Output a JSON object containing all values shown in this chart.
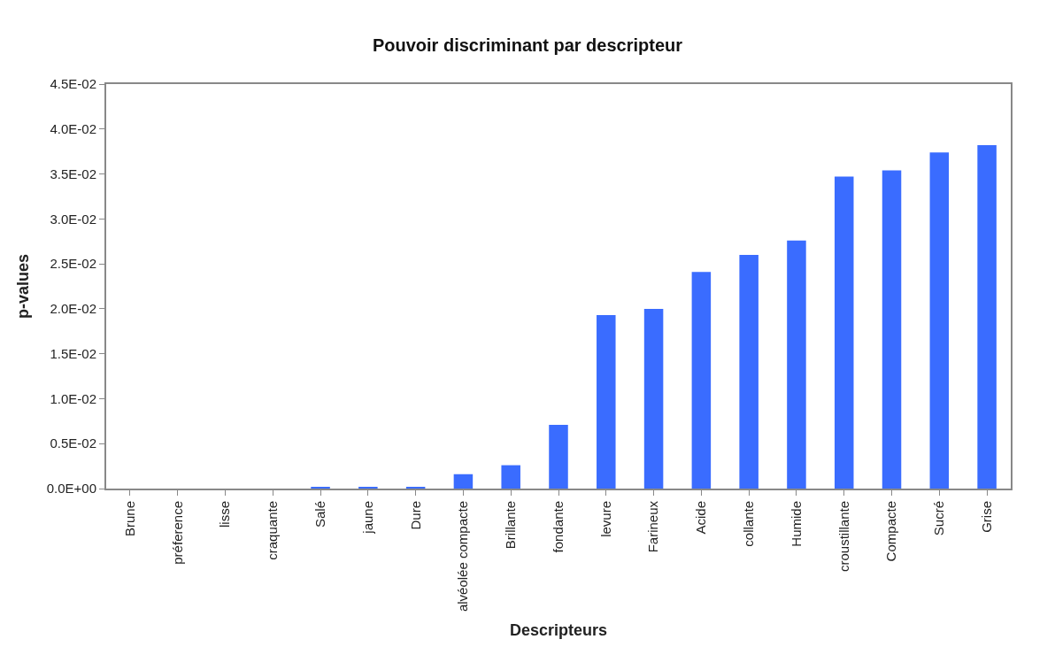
{
  "chart_data": {
    "type": "bar",
    "title": "Pouvoir discriminant par descripteur",
    "xlabel": "Descripteurs",
    "ylabel": "p-values",
    "categories": [
      "Brune",
      "préference",
      "lisse",
      "craquante",
      "Salé",
      "jaune",
      "Dure",
      "alvéolée compacte",
      "Brillante",
      "fondante",
      "levure",
      "Farineux",
      "Acide",
      "collante",
      "Humide",
      "croustillante",
      "Compacte",
      "Sucré",
      "Grise"
    ],
    "values": [
      0,
      0,
      0,
      0,
      0.0001,
      0.0001,
      0.0001,
      0.0016,
      0.0026,
      0.0071,
      0.0193,
      0.02,
      0.0241,
      0.026,
      0.0276,
      0.0347,
      0.0354,
      0.0374,
      0.0382
    ],
    "color": "#3a6cff",
    "ylim": [
      0,
      0.045
    ],
    "yticks": [
      {
        "value": 0,
        "label": "0.0E+00"
      },
      {
        "value": 0.005,
        "label": "0.5E-02"
      },
      {
        "value": 0.01,
        "label": "1.0E-02"
      },
      {
        "value": 0.015,
        "label": "1.5E-02"
      },
      {
        "value": 0.02,
        "label": "2.0E-02"
      },
      {
        "value": 0.025,
        "label": "2.5E-02"
      },
      {
        "value": 0.03,
        "label": "3.0E-02"
      },
      {
        "value": 0.035,
        "label": "3.5E-02"
      },
      {
        "value": 0.04,
        "label": "4.0E-02"
      },
      {
        "value": 0.045,
        "label": "4.5E-02"
      }
    ]
  }
}
